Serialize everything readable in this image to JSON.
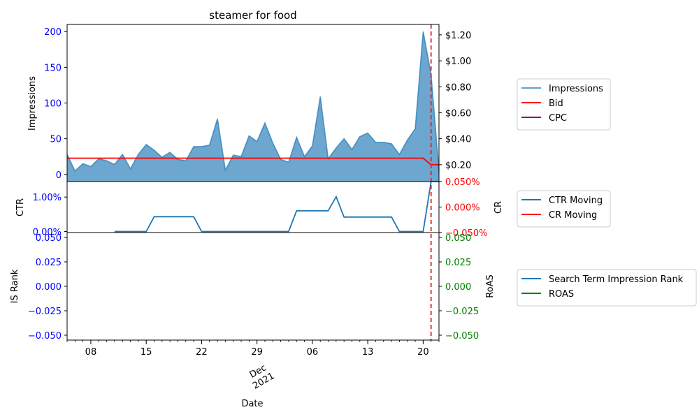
{
  "chart_data": [
    {
      "type": "area",
      "title": "steamer for food",
      "ylabel": "Impressions",
      "y2label": "",
      "ylim": [
        -10,
        210
      ],
      "y2lim": [
        0.07,
        1.28
      ],
      "yticks": [
        0,
        50,
        100,
        150,
        200
      ],
      "y2ticks": [
        0.2,
        0.4,
        0.6,
        0.8,
        1.0,
        1.2
      ],
      "y2ticklabels": [
        "$0.20",
        "$0.40",
        "$0.60",
        "$0.80",
        "$1.00",
        "$1.20"
      ],
      "x_start": "2021-11-05",
      "x_end": "2021-12-22",
      "series": [
        {
          "name": "Impressions",
          "color": "#1f77b4",
          "x": [
            "2021-11-05",
            "2021-11-06",
            "2021-11-07",
            "2021-11-08",
            "2021-11-09",
            "2021-11-10",
            "2021-11-11",
            "2021-11-12",
            "2021-11-13",
            "2021-11-14",
            "2021-11-15",
            "2021-11-16",
            "2021-11-17",
            "2021-11-18",
            "2021-11-19",
            "2021-11-20",
            "2021-11-21",
            "2021-11-22",
            "2021-11-23",
            "2021-11-24",
            "2021-11-25",
            "2021-11-26",
            "2021-11-27",
            "2021-11-28",
            "2021-11-29",
            "2021-11-30",
            "2021-12-01",
            "2021-12-02",
            "2021-12-03",
            "2021-12-04",
            "2021-12-05",
            "2021-12-06",
            "2021-12-07",
            "2021-12-08",
            "2021-12-09",
            "2021-12-10",
            "2021-12-11",
            "2021-12-12",
            "2021-12-13",
            "2021-12-14",
            "2021-12-15",
            "2021-12-16",
            "2021-12-17",
            "2021-12-18",
            "2021-12-19",
            "2021-12-20",
            "2021-12-21",
            "2021-12-22"
          ],
          "values": [
            28,
            5,
            15,
            11,
            22,
            19,
            14,
            28,
            8,
            28,
            42,
            34,
            24,
            31,
            21,
            19,
            39,
            39,
            41,
            78,
            6,
            27,
            25,
            54,
            46,
            72,
            44,
            21,
            17,
            52,
            25,
            40,
            109,
            22,
            37,
            50,
            35,
            53,
            58,
            45,
            45,
            43,
            28,
            48,
            64,
            200,
            140,
            5
          ]
        },
        {
          "name": "Bid",
          "color": "#ff0000",
          "x": [
            "2021-11-05",
            "2021-12-20",
            "2021-12-21",
            "2021-12-22"
          ],
          "values": [
            0.25,
            0.25,
            0.2,
            0.2
          ]
        },
        {
          "name": "CPC",
          "color": "#800080",
          "x": [],
          "values": []
        }
      ],
      "vline": {
        "x": "2021-12-21",
        "color": "#d62728",
        "style": "dashed"
      }
    },
    {
      "type": "line",
      "ylabel": "CTR",
      "y2label": "CR",
      "ylim": [
        -0.0003,
        0.0145
      ],
      "y2lim": [
        -0.05,
        0.05
      ],
      "yticks": [
        0,
        0.01
      ],
      "yticklabels": [
        "0.00%",
        "1.00%"
      ],
      "y2ticks": [
        -0.05,
        0.0,
        0.05
      ],
      "y2ticklabels": [
        "−0.050%",
        "0.000%",
        "0.050%"
      ],
      "series": [
        {
          "name": "CTR Moving",
          "color": "#1f77b4",
          "x": [
            "2021-11-11",
            "2021-11-15",
            "2021-11-16",
            "2021-11-21",
            "2021-11-22",
            "2021-12-03",
            "2021-12-04",
            "2021-12-08",
            "2021-12-09",
            "2021-12-10",
            "2021-12-16",
            "2021-12-17",
            "2021-12-20",
            "2021-12-21",
            "2021-12-22"
          ],
          "values": [
            0,
            0,
            0.0043,
            0.0043,
            0,
            0,
            0.006,
            0.006,
            0.0101,
            0.0042,
            0.0042,
            0,
            0,
            0.0145,
            0.0145
          ]
        },
        {
          "name": "CR Moving",
          "color": "#ff0000",
          "x": [],
          "values": []
        }
      ],
      "vline": {
        "x": "2021-12-21",
        "color": "#d62728",
        "style": "dashed"
      }
    },
    {
      "type": "line",
      "ylabel": "IS Rank",
      "y2label": "RoAS",
      "xlabel": "Date",
      "ylim": [
        -0.055,
        0.055
      ],
      "y2lim": [
        -0.055,
        0.055
      ],
      "yticks": [
        -0.05,
        -0.025,
        0,
        0.025,
        0.05
      ],
      "yticklabels": [
        "−0.050",
        "−0.025",
        "0.000",
        "0.025",
        "0.050"
      ],
      "y2ticks": [
        -0.05,
        -0.025,
        0,
        0.025,
        0.05
      ],
      "y2ticklabels": [
        "−0.050",
        "−0.025",
        "0.000",
        "0.025",
        "0.050"
      ],
      "xticks": [
        "2021-11-08",
        "2021-11-15",
        "2021-11-22",
        "2021-11-29",
        "2021-12-06",
        "2021-12-13",
        "2021-12-20"
      ],
      "xticklabels": [
        "08",
        "15",
        "22",
        "29",
        "06",
        "13",
        "20"
      ],
      "xsublabel": [
        "Dec",
        "2021"
      ],
      "series": [
        {
          "name": "Search Term Impression Rank",
          "color": "#1f77b4",
          "x": [],
          "values": []
        },
        {
          "name": "ROAS",
          "color": "#008000",
          "x": [],
          "values": []
        }
      ],
      "vline": {
        "x": "2021-12-21",
        "color": "#d62728",
        "style": "dashed"
      }
    }
  ]
}
